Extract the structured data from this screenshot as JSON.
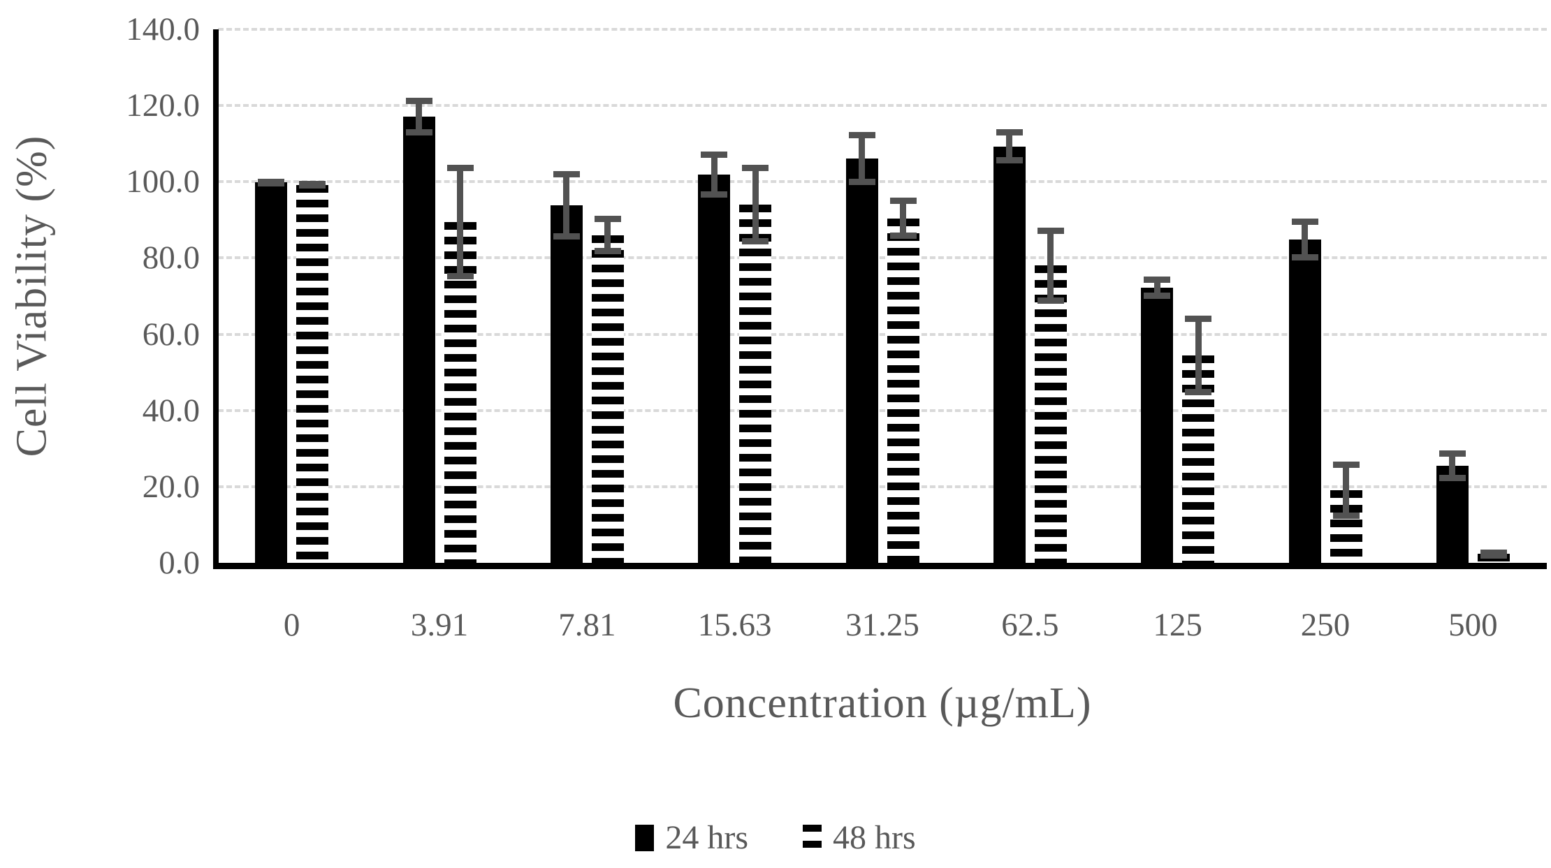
{
  "figure": {
    "background": "#ffffff",
    "text_color": "#595959",
    "bar_color": "#000000",
    "error_bar_color": "#525252",
    "gridline_color": "#d9d9d9",
    "axis_color": "#000000"
  },
  "chart_data": {
    "type": "bar",
    "title": "",
    "xlabel": "Concentration (µg/mL)",
    "ylabel": "Cell Viability (%)",
    "categories": [
      "0",
      "3.91",
      "7.81",
      "15.63",
      "31.25",
      "62.5",
      "125",
      "250",
      "500"
    ],
    "series": [
      {
        "name": "24 hrs",
        "fill": "solid",
        "values": [
          99.8,
          117.1,
          93.8,
          101.9,
          106.1,
          109.3,
          72.2,
          84.8,
          25.5
        ],
        "errors": [
          1.0,
          5.0,
          9.0,
          6.0,
          7.0,
          4.5,
          3.0,
          5.5,
          4.0
        ]
      },
      {
        "name": "48 hrs",
        "fill": "horizontal-stripes",
        "values": [
          99.2,
          89.4,
          86.0,
          94.0,
          90.4,
          78.0,
          54.4,
          19.0,
          2.3
        ],
        "errors": [
          1.0,
          15.0,
          5.0,
          10.5,
          5.4,
          10.0,
          10.5,
          7.5,
          1.2
        ]
      }
    ],
    "ylim": [
      0,
      140
    ],
    "ytick_step": 20,
    "ytick_labels": [
      "0.0",
      "20.0",
      "40.0",
      "60.0",
      "80.0",
      "100.0",
      "120.0",
      "140.0"
    ],
    "grid": true,
    "error_bars": true,
    "legend_position": "bottom-center"
  }
}
